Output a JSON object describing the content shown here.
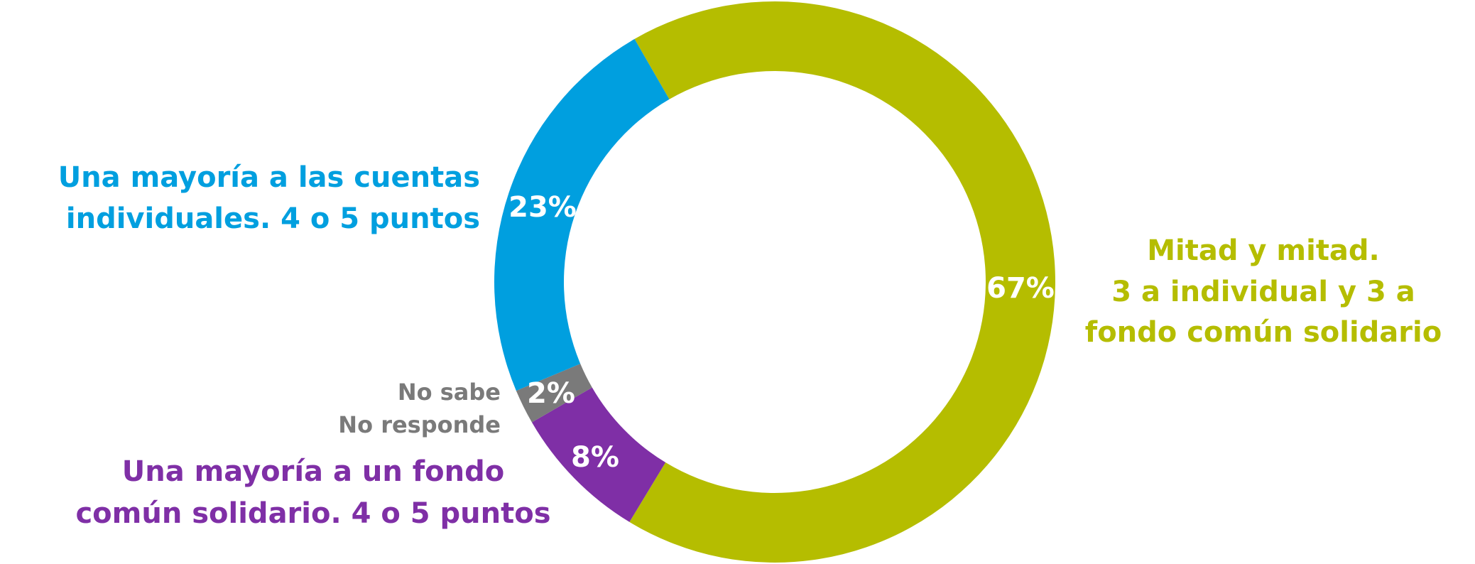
{
  "chart_data": {
    "type": "donut",
    "categories": [
      [
        "Mitad y mitad.",
        "3 a individual y 3 a",
        "fondo común solidario"
      ],
      [
        "Una mayoría a un fondo",
        "común solidario. 4 o 5 puntos"
      ],
      [
        "No sabe",
        "No responde"
      ],
      [
        "Una mayoría a las cuentas",
        "individuales. 4 o 5 puntos"
      ]
    ],
    "values": [
      67,
      8,
      2,
      23
    ],
    "value_labels": [
      "67%",
      "8%",
      "2%",
      "23%"
    ],
    "colors": [
      "#b5bd00",
      "#7f2fa6",
      "#7a7a7a",
      "#009fdf"
    ]
  }
}
